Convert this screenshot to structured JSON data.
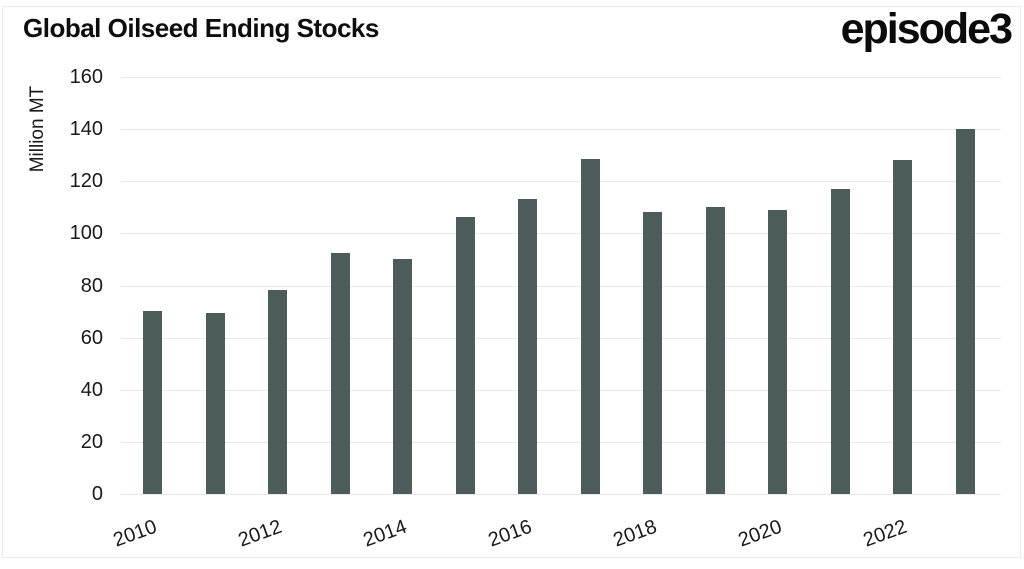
{
  "brand": {
    "logo_text": "episode3"
  },
  "chart_data": {
    "type": "bar",
    "title": "Global Oilseed Ending Stocks",
    "xlabel": "",
    "ylabel": "Million MT",
    "categories": [
      "2010",
      "2011",
      "2012",
      "2013",
      "2014",
      "2015",
      "2016",
      "2017",
      "2018",
      "2019",
      "2020",
      "2021",
      "2022",
      "2023"
    ],
    "values": [
      70.3,
      69.4,
      78.4,
      92.6,
      90.2,
      106.4,
      113.0,
      128.7,
      108.2,
      110.2,
      108.8,
      117.1,
      128.1,
      140.1
    ],
    "x_tick_labels": [
      "2010",
      "2012",
      "2014",
      "2016",
      "2018",
      "2020",
      "2022"
    ],
    "ylim": [
      0,
      160
    ],
    "ytick_step": 20,
    "grid": "horizontal",
    "legend": "none",
    "bar_color": "#4b5c5a",
    "grid_color": "#e8e8e8"
  }
}
